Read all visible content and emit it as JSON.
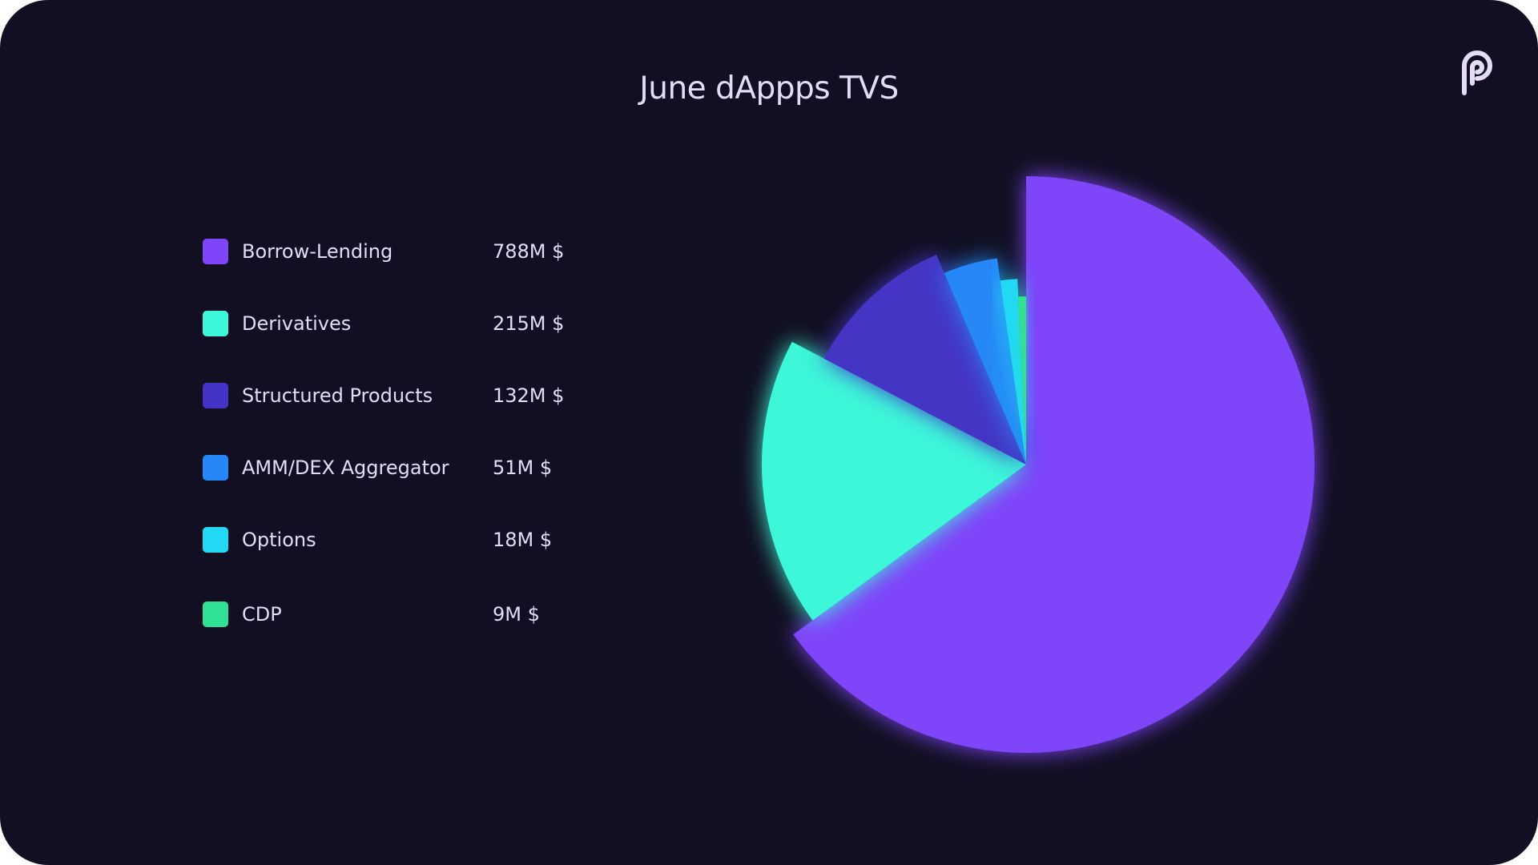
{
  "chart_data": {
    "type": "pie",
    "title": "June dAppps TVS",
    "categories": [
      "Borrow-Lending",
      "Derivatives",
      "Structured Products",
      "AMM/DEX Aggregator",
      "Options",
      "CDP"
    ],
    "values": [
      788,
      215,
      132,
      51,
      18,
      9
    ],
    "value_labels": [
      "788M $",
      "215M $",
      "132M $",
      "51M $",
      "18M $",
      "9M $"
    ],
    "colors": [
      "#7f45f9",
      "#3cf7d9",
      "#4434c5",
      "#2688f7",
      "#22d9f3",
      "#30e094"
    ],
    "legend_position": "left"
  },
  "logo": {
    "icon": "pyth-logo-icon",
    "color": "#e4dcf7"
  }
}
